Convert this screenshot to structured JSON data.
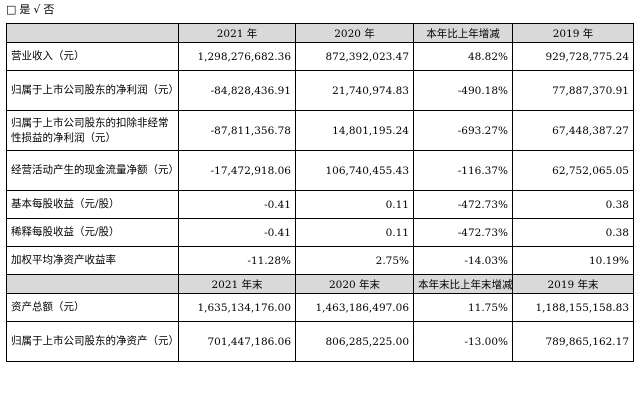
{
  "top": {
    "checkbox_empty": "□",
    "yes": "是",
    "check": "√",
    "no": "否"
  },
  "header1": [
    "",
    "2021 年",
    "2020 年",
    "本年比上年增减",
    "2019 年"
  ],
  "rows1": [
    [
      "营业收入（元）",
      "1,298,276,682.36",
      "872,392,023.47",
      "48.82%",
      "929,728,775.24"
    ],
    [
      "归属于上市公司股东的净利润（元）",
      "-84,828,436.91",
      "21,740,974.83",
      "-490.18%",
      "77,887,370.91"
    ],
    [
      "归属于上市公司股东的扣除非经常性损益的净利润（元）",
      "-87,811,356.78",
      "14,801,195.24",
      "-693.27%",
      "67,448,387.27"
    ],
    [
      "经营活动产生的现金流量净额（元）",
      "-17,472,918.06",
      "106,740,455.43",
      "-116.37%",
      "62,752,065.05"
    ],
    [
      "基本每股收益（元/股）",
      "-0.41",
      "0.11",
      "-472.73%",
      "0.38"
    ],
    [
      "稀释每股收益（元/股）",
      "-0.41",
      "0.11",
      "-472.73%",
      "0.38"
    ],
    [
      "加权平均净资产收益率",
      "-11.28%",
      "2.75%",
      "-14.03%",
      "10.19%"
    ]
  ],
  "header2": [
    "",
    "2021 年末",
    "2020 年末",
    "本年末比上年末增减",
    "2019 年末"
  ],
  "rows2": [
    [
      "资产总额（元）",
      "1,635,134,176.00",
      "1,463,186,497.06",
      "11.75%",
      "1,188,155,158.83"
    ],
    [
      "归属于上市公司股东的净资产（元）",
      "701,447,186.06",
      "806,285,225.00",
      "-13.00%",
      "789,865,162.17"
    ]
  ]
}
